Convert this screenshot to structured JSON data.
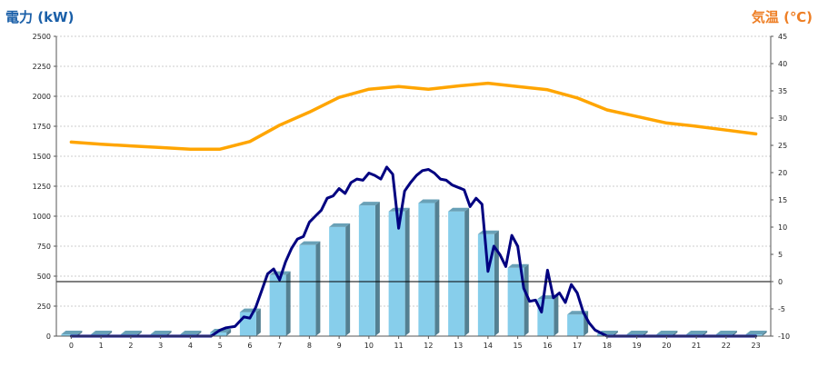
{
  "chart_data": {
    "type": "bar",
    "title": "",
    "y_left_label": "電力 (kW)",
    "y_right_label": "気温 (℃)",
    "xlabel": "",
    "categories": [
      "0",
      "1",
      "2",
      "3",
      "4",
      "5",
      "6",
      "7",
      "8",
      "9",
      "10",
      "11",
      "12",
      "13",
      "14",
      "15",
      "16",
      "17",
      "18",
      "19",
      "20",
      "21",
      "22",
      "23"
    ],
    "ylim_left": [
      0,
      2500
    ],
    "y_left_ticks": [
      0,
      250,
      500,
      750,
      1000,
      1250,
      1500,
      1750,
      2000,
      2250,
      2500
    ],
    "ylim_right": [
      -10,
      45
    ],
    "y_right_ticks": [
      -10,
      -5,
      0,
      5,
      10,
      15,
      20,
      25,
      30,
      35,
      40,
      45
    ],
    "grid": true,
    "reference_line": {
      "axis": "right",
      "value": 0
    },
    "series": [
      {
        "kind": "bar",
        "axis": "left",
        "color": "#87ceeb",
        "values": [
          15,
          15,
          15,
          15,
          15,
          30,
          200,
          510,
          760,
          910,
          1090,
          1040,
          1110,
          1040,
          850,
          570,
          310,
          180,
          15,
          15,
          15,
          15,
          15,
          15
        ]
      },
      {
        "kind": "line",
        "axis": "left",
        "color": "#000080",
        "x": [
          0,
          1,
          2,
          3,
          4,
          4.7,
          5,
          5.2,
          5.5,
          5.8,
          6,
          6.2,
          6.4,
          6.6,
          6.8,
          7,
          7.2,
          7.4,
          7.6,
          7.8,
          8,
          8.2,
          8.4,
          8.6,
          8.8,
          9,
          9.2,
          9.4,
          9.6,
          9.8,
          10,
          10.2,
          10.4,
          10.6,
          10.8,
          11,
          11.2,
          11.4,
          11.6,
          11.8,
          12,
          12.2,
          12.4,
          12.6,
          12.8,
          13,
          13.2,
          13.4,
          13.6,
          13.8,
          14,
          14.2,
          14.4,
          14.6,
          14.8,
          15,
          15.2,
          15.4,
          15.6,
          15.8,
          16,
          16.2,
          16.4,
          16.6,
          16.8,
          17,
          17.2,
          17.4,
          17.6,
          18,
          19,
          20,
          21,
          22,
          23
        ],
        "values": [
          0,
          0,
          0,
          0,
          0,
          0,
          50,
          70,
          80,
          160,
          150,
          240,
          380,
          520,
          560,
          470,
          620,
          730,
          810,
          830,
          950,
          1000,
          1050,
          1150,
          1170,
          1230,
          1190,
          1280,
          1310,
          1300,
          1360,
          1340,
          1310,
          1410,
          1350,
          900,
          1210,
          1280,
          1340,
          1380,
          1390,
          1360,
          1310,
          1300,
          1260,
          1240,
          1220,
          1080,
          1150,
          1100,
          540,
          750,
          680,
          580,
          840,
          750,
          400,
          290,
          300,
          200,
          550,
          320,
          360,
          280,
          430,
          360,
          200,
          110,
          50,
          0,
          0,
          0,
          0,
          0,
          0
        ]
      },
      {
        "kind": "line",
        "axis": "right",
        "color": "#ffa500",
        "values": [
          25.6,
          25.2,
          24.9,
          24.6,
          24.3,
          24.3,
          25.7,
          28.7,
          31.1,
          33.8,
          35.3,
          35.8,
          35.3,
          35.9,
          36.4,
          35.8,
          35.2,
          33.7,
          31.5,
          30.3,
          29.1,
          28.5,
          27.8,
          27.1
        ]
      }
    ]
  }
}
